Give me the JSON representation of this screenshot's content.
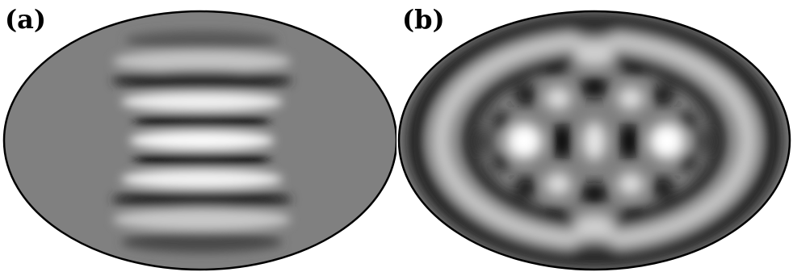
{
  "figure": {
    "panels": [
      {
        "id": "a",
        "label": "(a)"
      },
      {
        "id": "b",
        "label": "(b)"
      }
    ]
  },
  "colors": {
    "background": "#ffffff",
    "neutral_gray": "#808080",
    "outline": "#000000"
  }
}
